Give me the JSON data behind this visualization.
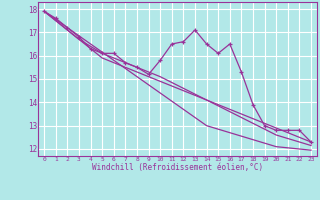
{
  "xlabel": "Windchill (Refroidissement éolien,°C)",
  "bg_color": "#b2e8e8",
  "grid_color": "#ffffff",
  "line_color": "#993399",
  "x_ticks": [
    0,
    1,
    2,
    3,
    4,
    5,
    6,
    7,
    8,
    9,
    10,
    11,
    12,
    13,
    14,
    15,
    16,
    17,
    18,
    19,
    20,
    21,
    22,
    23
  ],
  "y_ticks": [
    12,
    13,
    14,
    15,
    16,
    17,
    18
  ],
  "xlim": [
    -0.5,
    23.5
  ],
  "ylim": [
    11.7,
    18.3
  ],
  "series1_x": [
    0,
    1,
    2,
    3,
    4,
    5,
    6,
    7,
    8,
    9,
    10,
    11,
    12,
    13,
    14,
    15,
    16,
    17,
    18,
    19,
    20,
    21,
    22,
    23
  ],
  "series1_y": [
    17.9,
    17.6,
    17.2,
    16.8,
    16.3,
    16.1,
    16.1,
    15.7,
    15.5,
    15.2,
    15.8,
    16.5,
    16.6,
    17.1,
    16.5,
    16.1,
    16.5,
    15.3,
    13.9,
    13.0,
    12.8,
    12.8,
    12.8,
    12.3
  ],
  "series2_y": [
    17.9,
    17.55,
    17.2,
    16.85,
    16.5,
    16.15,
    15.8,
    15.45,
    15.1,
    14.75,
    14.4,
    14.05,
    13.7,
    13.35,
    13.0,
    12.85,
    12.7,
    12.55,
    12.4,
    12.25,
    12.1,
    12.05,
    12.0,
    11.95
  ],
  "series3_y": [
    17.9,
    17.5,
    17.1,
    16.7,
    16.3,
    15.9,
    15.7,
    15.5,
    15.3,
    15.1,
    14.9,
    14.7,
    14.5,
    14.3,
    14.1,
    13.9,
    13.7,
    13.5,
    13.3,
    13.1,
    12.9,
    12.7,
    12.5,
    12.3
  ],
  "series4_y": [
    17.9,
    17.5,
    17.1,
    16.7,
    16.4,
    16.1,
    15.9,
    15.7,
    15.5,
    15.3,
    15.1,
    14.85,
    14.6,
    14.35,
    14.1,
    13.85,
    13.6,
    13.35,
    13.1,
    12.85,
    12.6,
    12.45,
    12.3,
    12.15
  ]
}
